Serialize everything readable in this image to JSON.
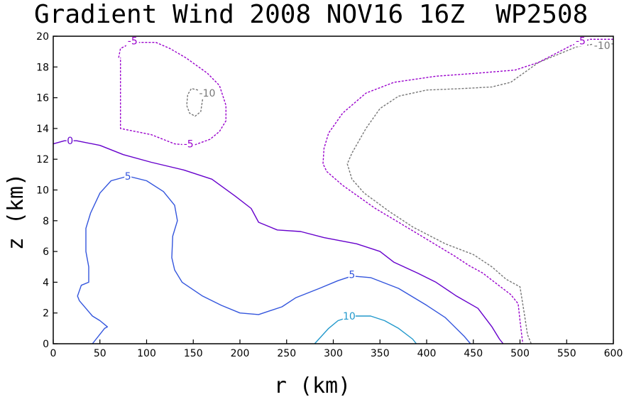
{
  "chart_data": {
    "type": "contour",
    "title": "Gradient Wind 2008 NOV16 16Z  WP2508",
    "xlabel": "r (km)",
    "ylabel": "z (km)",
    "xlim": [
      0,
      600
    ],
    "ylim": [
      0,
      20
    ],
    "xticks": [
      0,
      50,
      100,
      150,
      200,
      250,
      300,
      350,
      400,
      450,
      500,
      550,
      600
    ],
    "yticks": [
      0,
      2,
      4,
      6,
      8,
      10,
      12,
      14,
      16,
      18,
      20
    ],
    "contours": [
      {
        "id": "neg10-inner",
        "level": -10,
        "label": "-10",
        "color": "#777777",
        "dashed": true,
        "points": [
          [
            155,
            16.5
          ],
          [
            148,
            16.6
          ],
          [
            144,
            16.2
          ],
          [
            143,
            15.5
          ],
          [
            146,
            15.0
          ],
          [
            152,
            14.8
          ],
          [
            158,
            15.1
          ],
          [
            160,
            15.9
          ],
          [
            158,
            16.5
          ],
          [
            155,
            16.5
          ]
        ],
        "label_pos": [
          165,
          16.3
        ]
      },
      {
        "id": "neg5-inner",
        "level": -5,
        "label": "-5",
        "color": "#9900cc",
        "dashed": true,
        "points": [
          [
            70,
            18.6
          ],
          [
            72,
            19.2
          ],
          [
            85,
            19.6
          ],
          [
            110,
            19.6
          ],
          [
            125,
            19.2
          ],
          [
            142,
            18.6
          ],
          [
            165,
            17.6
          ],
          [
            178,
            16.8
          ],
          [
            185,
            15.5
          ],
          [
            185,
            14.5
          ],
          [
            178,
            13.8
          ],
          [
            168,
            13.3
          ],
          [
            150,
            12.9
          ],
          [
            130,
            13.0
          ],
          [
            105,
            13.6
          ],
          [
            72,
            14.0
          ],
          [
            72,
            16.0
          ],
          [
            72,
            18.6
          ]
        ],
        "label_pos": [
          [
            85,
            19.7
          ],
          [
            145,
            13.0
          ]
        ]
      },
      {
        "id": "neg10-outer",
        "level": -10,
        "label": "-10",
        "color": "#777777",
        "dashed": true,
        "points": [
          [
            600,
            19.5
          ],
          [
            580,
            19.5
          ],
          [
            560,
            19.3
          ],
          [
            520,
            18.3
          ],
          [
            490,
            17.0
          ],
          [
            470,
            16.7
          ],
          [
            440,
            16.6
          ],
          [
            400,
            16.5
          ],
          [
            370,
            16.1
          ],
          [
            350,
            15.3
          ],
          [
            335,
            14.0
          ],
          [
            320,
            12.4
          ],
          [
            315,
            11.7
          ],
          [
            320,
            10.7
          ],
          [
            333,
            9.8
          ],
          [
            360,
            8.6
          ],
          [
            385,
            7.6
          ],
          [
            420,
            6.5
          ],
          [
            450,
            5.8
          ],
          [
            470,
            5.0
          ],
          [
            485,
            4.2
          ],
          [
            500,
            3.7
          ],
          [
            505,
            1.8
          ],
          [
            508,
            0.6
          ],
          [
            512,
            0
          ]
        ],
        "label_pos": [
          588,
          19.4
        ]
      },
      {
        "id": "neg5-outer",
        "level": -5,
        "label": "-5",
        "color": "#9900cc",
        "dashed": true,
        "points": [
          [
            600,
            19.8
          ],
          [
            575,
            19.8
          ],
          [
            555,
            19.4
          ],
          [
            520,
            18.3
          ],
          [
            495,
            17.8
          ],
          [
            455,
            17.6
          ],
          [
            410,
            17.4
          ],
          [
            365,
            17.0
          ],
          [
            335,
            16.3
          ],
          [
            310,
            15.0
          ],
          [
            295,
            13.7
          ],
          [
            290,
            12.7
          ],
          [
            289,
            11.7
          ],
          [
            293,
            11.2
          ],
          [
            310,
            10.3
          ],
          [
            345,
            8.8
          ],
          [
            370,
            7.9
          ],
          [
            400,
            6.8
          ],
          [
            430,
            5.7
          ],
          [
            445,
            5.1
          ],
          [
            460,
            4.6
          ],
          [
            475,
            3.9
          ],
          [
            490,
            3.2
          ],
          [
            498,
            2.6
          ],
          [
            500,
            1.5
          ],
          [
            502,
            0.5
          ],
          [
            503,
            0
          ]
        ],
        "label_pos": [
          565,
          19.7
        ]
      },
      {
        "id": "zero",
        "level": 0,
        "label": "0",
        "color": "#6600cc",
        "dashed": false,
        "points": [
          [
            0,
            13.0
          ],
          [
            12,
            13.2
          ],
          [
            25,
            13.2
          ],
          [
            50,
            12.9
          ],
          [
            75,
            12.3
          ],
          [
            105,
            11.8
          ],
          [
            140,
            11.3
          ],
          [
            170,
            10.7
          ],
          [
            195,
            9.6
          ],
          [
            212,
            8.8
          ],
          [
            220,
            7.9
          ],
          [
            240,
            7.4
          ],
          [
            265,
            7.3
          ],
          [
            290,
            6.9
          ],
          [
            325,
            6.5
          ],
          [
            350,
            6.0
          ],
          [
            365,
            5.3
          ],
          [
            390,
            4.6
          ],
          [
            410,
            4.0
          ],
          [
            432,
            3.1
          ],
          [
            455,
            2.3
          ],
          [
            470,
            1.1
          ],
          [
            478,
            0.3
          ],
          [
            482,
            0
          ]
        ],
        "label_pos": [
          18,
          13.2
        ]
      },
      {
        "id": "pos5",
        "level": 5,
        "label": "5",
        "color": "#3355dd",
        "dashed": false,
        "points": [
          [
            42,
            0
          ],
          [
            55,
            1.0
          ],
          [
            58,
            1.1
          ],
          [
            50,
            1.5
          ],
          [
            42,
            1.8
          ],
          [
            35,
            2.3
          ],
          [
            28,
            2.8
          ],
          [
            26,
            3.1
          ],
          [
            30,
            3.8
          ],
          [
            38,
            4.0
          ],
          [
            38,
            5.0
          ],
          [
            35,
            6.0
          ],
          [
            35,
            7.5
          ],
          [
            40,
            8.5
          ],
          [
            50,
            9.8
          ],
          [
            62,
            10.6
          ],
          [
            80,
            10.9
          ],
          [
            100,
            10.6
          ],
          [
            118,
            9.9
          ],
          [
            130,
            9.0
          ],
          [
            133,
            8.0
          ],
          [
            128,
            7.0
          ],
          [
            127,
            5.6
          ],
          [
            130,
            4.8
          ],
          [
            138,
            4.0
          ],
          [
            160,
            3.1
          ],
          [
            180,
            2.5
          ],
          [
            200,
            2.0
          ],
          [
            220,
            1.9
          ],
          [
            245,
            2.4
          ],
          [
            260,
            3.0
          ],
          [
            285,
            3.6
          ],
          [
            305,
            4.1
          ],
          [
            320,
            4.4
          ],
          [
            340,
            4.3
          ],
          [
            370,
            3.6
          ],
          [
            400,
            2.5
          ],
          [
            420,
            1.7
          ],
          [
            440,
            0.5
          ],
          [
            447,
            0
          ]
        ],
        "label_pos": [
          [
            80,
            10.9
          ],
          [
            320,
            4.5
          ]
        ]
      },
      {
        "id": "pos10",
        "level": 10,
        "label": "10",
        "color": "#2299cc",
        "dashed": false,
        "points": [
          [
            280,
            0
          ],
          [
            295,
            1.0
          ],
          [
            305,
            1.5
          ],
          [
            320,
            1.8
          ],
          [
            340,
            1.8
          ],
          [
            355,
            1.5
          ],
          [
            370,
            1.0
          ],
          [
            385,
            0.3
          ],
          [
            389,
            0
          ]
        ],
        "label_pos": [
          317,
          1.8
        ]
      }
    ]
  }
}
